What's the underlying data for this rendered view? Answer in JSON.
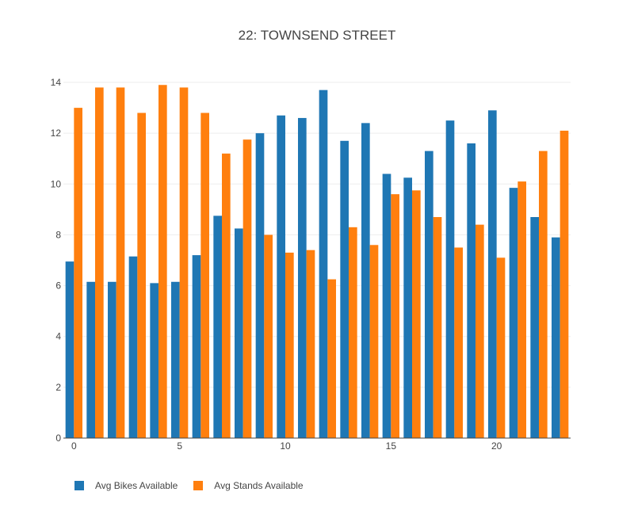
{
  "chart_data": {
    "type": "bar",
    "title": "22: TOWNSEND STREET",
    "xlabel": "",
    "ylabel": "",
    "x": [
      0,
      1,
      2,
      3,
      4,
      5,
      6,
      7,
      8,
      9,
      10,
      11,
      12,
      13,
      14,
      15,
      16,
      17,
      18,
      19,
      20,
      21,
      22,
      23
    ],
    "xlim": [
      -0.5,
      23.5
    ],
    "ylim": [
      0,
      14.5
    ],
    "xticks": [
      0,
      5,
      10,
      15,
      20
    ],
    "yticks": [
      0,
      2,
      4,
      6,
      8,
      10,
      12,
      14
    ],
    "grid": true,
    "legend_position": "bottom-left",
    "series": [
      {
        "name": "Avg Bikes Available",
        "color": "#1f77b4",
        "values": [
          6.95,
          6.15,
          6.15,
          7.15,
          6.1,
          6.15,
          7.2,
          8.75,
          8.25,
          12.0,
          12.7,
          12.6,
          13.7,
          11.7,
          12.4,
          10.4,
          10.25,
          11.3,
          12.5,
          11.6,
          12.9,
          9.85,
          8.7,
          7.9
        ]
      },
      {
        "name": "Avg Stands Available",
        "color": "#ff7f0e",
        "values": [
          13.0,
          13.8,
          13.8,
          12.8,
          13.9,
          13.8,
          12.8,
          11.2,
          11.75,
          8.0,
          7.3,
          7.4,
          6.25,
          8.3,
          7.6,
          9.6,
          9.75,
          8.7,
          7.5,
          8.4,
          7.1,
          10.1,
          11.3,
          12.1
        ]
      }
    ]
  }
}
